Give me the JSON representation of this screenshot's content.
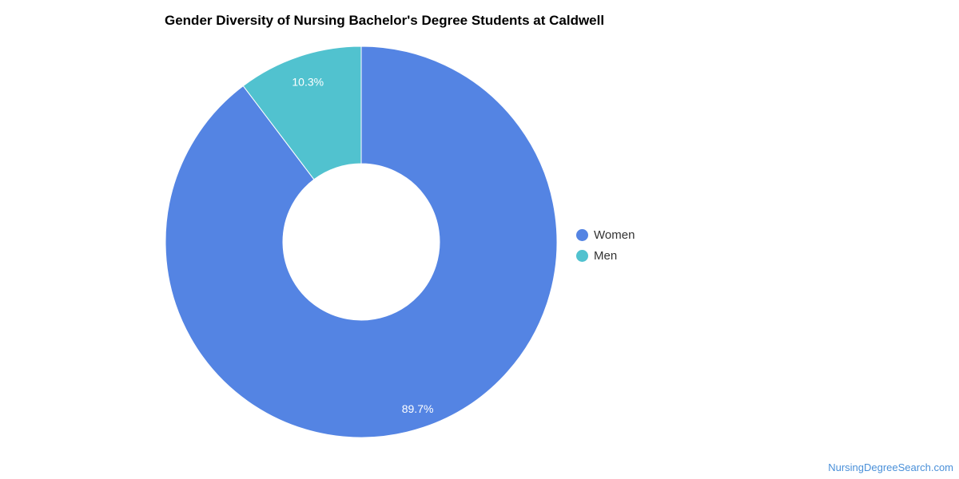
{
  "chart_data": {
    "type": "pie",
    "title": "Gender Diversity of Nursing Bachelor's Degree Students at Caldwell",
    "labels": [
      "Women",
      "Men"
    ],
    "values": [
      89.7,
      10.3
    ],
    "data_labels": [
      "89.7%",
      "10.3%"
    ],
    "colors": [
      "#5484e3",
      "#51c2cf"
    ],
    "donut": true,
    "legend_position": "right"
  },
  "footer": {
    "source": "NursingDegreeSearch.com"
  }
}
